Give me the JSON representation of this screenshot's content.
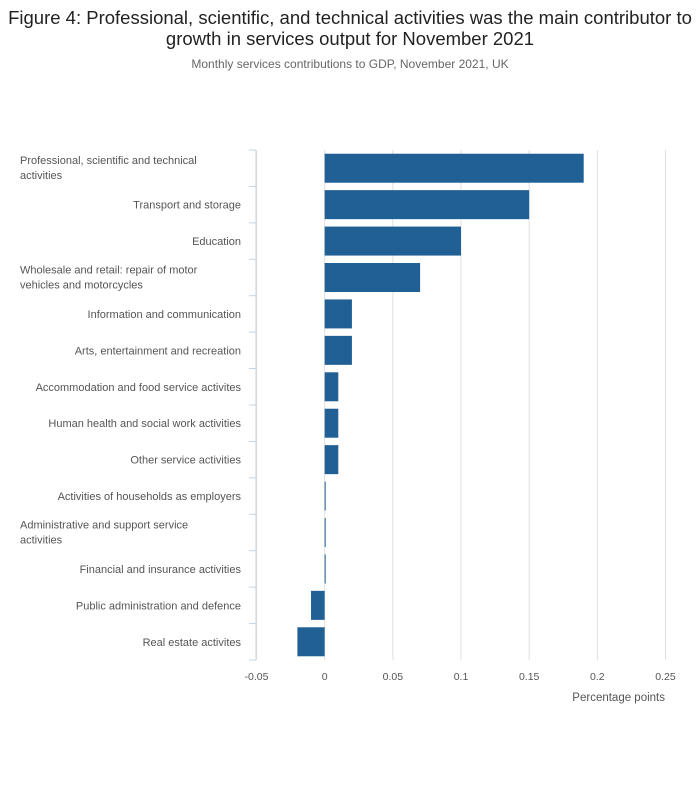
{
  "header": {
    "title": "Figure 4: Professional, scientific, and technical activities was the main contributor to growth in services output for November 2021",
    "subtitle": "Monthly services contributions to GDP, November 2021, UK"
  },
  "chart_data": {
    "type": "bar",
    "orientation": "horizontal",
    "title": "Figure 4: Professional, scientific, and technical activities was the main contributor to growth in services output for November 2021",
    "subtitle": "Monthly services contributions to GDP, November 2021, UK",
    "xlabel": "Percentage points",
    "ylabel": "",
    "xlim": [
      -0.05,
      0.25
    ],
    "xticks": [
      -0.05,
      0,
      0.05,
      0.1,
      0.15,
      0.2,
      0.25
    ],
    "xtick_labels": [
      "-0.05",
      "0",
      "0.05",
      "0.1",
      "0.15",
      "0.2",
      "0.25"
    ],
    "grid": true,
    "bar_color": "#206095",
    "grid_color": "#e0e0e0",
    "categories": [
      "Professional, scientific and technical activities",
      "Transport and storage",
      "Education",
      "Wholesale and retail: repair of motor vehicles and motorcycles",
      "Information and communication",
      "Arts, entertainment and recreation",
      "Accommodation and food service activites",
      "Human health and social work activities",
      "Other service activities",
      "Activities of households as employers",
      "Administrative and support service activities",
      "Financial and insurance activities",
      "Public administration and defence",
      "Real estate activites"
    ],
    "category_lines": [
      [
        "Professional, scientific and technical",
        "activities"
      ],
      [
        "Transport and storage"
      ],
      [
        "Education"
      ],
      [
        "Wholesale and retail: repair of motor",
        "vehicles and motorcycles"
      ],
      [
        "Information and communication"
      ],
      [
        "Arts, entertainment and recreation"
      ],
      [
        "Accommodation and food service activites"
      ],
      [
        "Human health and social work activities"
      ],
      [
        "Other service activities"
      ],
      [
        "Activities of households as employers"
      ],
      [
        "Administrative and support service",
        "activities"
      ],
      [
        "Financial and insurance activities"
      ],
      [
        "Public administration and defence"
      ],
      [
        "Real estate activites"
      ]
    ],
    "values": [
      0.19,
      0.15,
      0.1,
      0.07,
      0.02,
      0.02,
      0.01,
      0.01,
      0.01,
      0.0,
      0.0,
      0.0,
      -0.01,
      -0.02
    ]
  }
}
